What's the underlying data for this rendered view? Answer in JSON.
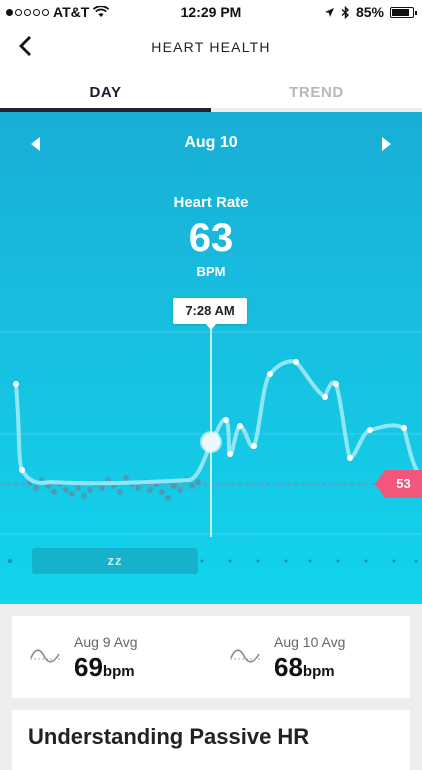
{
  "status_bar": {
    "carrier": "AT&T",
    "time": "12:29 PM",
    "battery": "85%"
  },
  "header": {
    "title": "HEART HEALTH"
  },
  "tabs": [
    {
      "label": "DAY",
      "active": true
    },
    {
      "label": "TREND",
      "active": false
    }
  ],
  "date_nav": {
    "date": "Aug 10"
  },
  "heart_rate": {
    "label": "Heart Rate",
    "value": "63",
    "unit": "BPM"
  },
  "chart": {
    "tooltip_time": "7:28 AM",
    "current_value": "53",
    "sleep_marker": "zz",
    "colors": {
      "line": "#8fe7f6",
      "marker": "#f2567a",
      "background_top": "#19aed6",
      "background_bottom": "#12d4ec"
    }
  },
  "averages": [
    {
      "label": "Aug 9 Avg",
      "value": "69",
      "unit": "bpm"
    },
    {
      "label": "Aug 10 Avg",
      "value": "68",
      "unit": "bpm"
    }
  ],
  "section": {
    "title": "Understanding Passive HR"
  }
}
